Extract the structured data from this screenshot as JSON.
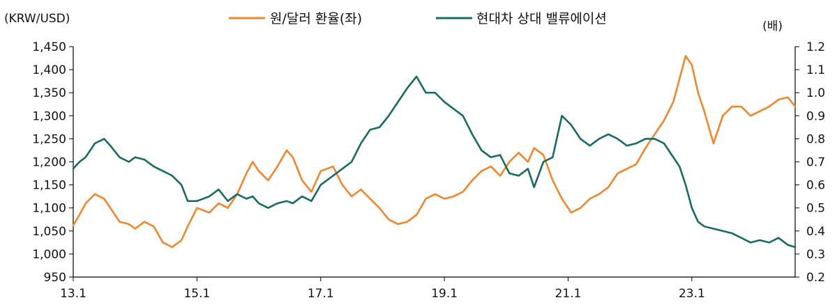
{
  "chart_data": {
    "type": "line",
    "left_axis_label": "(KRW/USD)",
    "right_axis_label": "(배)",
    "left_ylim": [
      950,
      1450
    ],
    "left_ticks": [
      "1,450",
      "1,400",
      "1,350",
      "1,300",
      "1,250",
      "1,200",
      "1,150",
      "1,100",
      "1,050",
      "1,000",
      "950"
    ],
    "left_tick_values": [
      1450,
      1400,
      1350,
      1300,
      1250,
      1200,
      1150,
      1100,
      1050,
      1000,
      950
    ],
    "right_ylim": [
      0.2,
      1.2
    ],
    "right_ticks": [
      "1.2",
      "1.1",
      "1.0",
      "0.9",
      "0.8",
      "0.7",
      "0.6",
      "0.5",
      "0.4",
      "0.3",
      "0.2"
    ],
    "right_tick_values": [
      1.2,
      1.1,
      1.0,
      0.9,
      0.8,
      0.7,
      0.6,
      0.5,
      0.4,
      0.3,
      0.2
    ],
    "x_range": [
      2013.0,
      2024.67
    ],
    "x_ticks": [
      "13.1",
      "15.1",
      "17.1",
      "19.1",
      "21.1",
      "23.1"
    ],
    "x_tick_values": [
      2013.0,
      2015.0,
      2017.0,
      2019.0,
      2021.0,
      2023.0
    ],
    "grid": false,
    "legend_position": "top-center",
    "series": [
      {
        "name": "원/달러 환율(좌)",
        "axis": "left",
        "color": "#F4862A",
        "x": [
          2013.0,
          2013.1,
          2013.2,
          2013.35,
          2013.5,
          2013.6,
          2013.75,
          2013.9,
          2014.0,
          2014.15,
          2014.3,
          2014.45,
          2014.6,
          2014.75,
          2014.85,
          2015.0,
          2015.2,
          2015.35,
          2015.5,
          2015.65,
          2015.8,
          2015.9,
          2016.0,
          2016.15,
          2016.3,
          2016.45,
          2016.55,
          2016.7,
          2016.85,
          2017.0,
          2017.2,
          2017.35,
          2017.5,
          2017.65,
          2017.8,
          2017.95,
          2018.1,
          2018.25,
          2018.4,
          2018.55,
          2018.7,
          2018.85,
          2019.0,
          2019.15,
          2019.3,
          2019.45,
          2019.6,
          2019.75,
          2019.9,
          2020.05,
          2020.2,
          2020.35,
          2020.45,
          2020.6,
          2020.75,
          2020.9,
          2021.05,
          2021.2,
          2021.35,
          2021.5,
          2021.65,
          2021.8,
          2021.95,
          2022.1,
          2022.25,
          2022.4,
          2022.55,
          2022.7,
          2022.8,
          2022.9,
          2023.0,
          2023.1,
          2023.2,
          2023.35,
          2023.5,
          2023.65,
          2023.8,
          2023.95,
          2024.1,
          2024.25,
          2024.4,
          2024.55,
          2024.67
        ],
        "values": [
          1062,
          1085,
          1110,
          1130,
          1120,
          1100,
          1070,
          1065,
          1055,
          1070,
          1060,
          1025,
          1015,
          1030,
          1060,
          1100,
          1090,
          1110,
          1100,
          1130,
          1175,
          1200,
          1180,
          1160,
          1190,
          1225,
          1210,
          1160,
          1135,
          1180,
          1190,
          1150,
          1125,
          1140,
          1120,
          1100,
          1075,
          1065,
          1070,
          1085,
          1120,
          1130,
          1120,
          1125,
          1135,
          1160,
          1180,
          1190,
          1170,
          1200,
          1220,
          1200,
          1230,
          1215,
          1160,
          1120,
          1090,
          1100,
          1120,
          1130,
          1145,
          1175,
          1185,
          1195,
          1230,
          1260,
          1290,
          1330,
          1380,
          1430,
          1410,
          1350,
          1310,
          1240,
          1300,
          1320,
          1320,
          1300,
          1310,
          1320,
          1335,
          1340,
          1320
        ]
      },
      {
        "name": "현대차 상대 밸류에이션",
        "axis": "right",
        "color": "#176B63",
        "x": [
          2013.0,
          2013.1,
          2013.2,
          2013.35,
          2013.5,
          2013.6,
          2013.75,
          2013.9,
          2014.0,
          2014.15,
          2014.3,
          2014.45,
          2014.6,
          2014.75,
          2014.85,
          2015.0,
          2015.2,
          2015.35,
          2015.5,
          2015.65,
          2015.8,
          2015.9,
          2016.0,
          2016.15,
          2016.3,
          2016.45,
          2016.55,
          2016.7,
          2016.85,
          2017.0,
          2017.2,
          2017.35,
          2017.5,
          2017.65,
          2017.8,
          2017.95,
          2018.1,
          2018.25,
          2018.4,
          2018.55,
          2018.7,
          2018.85,
          2019.0,
          2019.15,
          2019.3,
          2019.45,
          2019.6,
          2019.75,
          2019.9,
          2020.05,
          2020.2,
          2020.35,
          2020.45,
          2020.6,
          2020.75,
          2020.9,
          2021.05,
          2021.2,
          2021.35,
          2021.5,
          2021.65,
          2021.8,
          2021.95,
          2022.1,
          2022.25,
          2022.4,
          2022.55,
          2022.7,
          2022.8,
          2022.9,
          2023.0,
          2023.1,
          2023.2,
          2023.35,
          2023.5,
          2023.65,
          2023.8,
          2023.95,
          2024.1,
          2024.25,
          2024.4,
          2024.55,
          2024.67
        ],
        "values": [
          0.67,
          0.7,
          0.72,
          0.78,
          0.8,
          0.77,
          0.72,
          0.7,
          0.72,
          0.71,
          0.68,
          0.66,
          0.64,
          0.6,
          0.53,
          0.53,
          0.55,
          0.58,
          0.53,
          0.56,
          0.54,
          0.55,
          0.52,
          0.5,
          0.52,
          0.53,
          0.52,
          0.55,
          0.53,
          0.6,
          0.64,
          0.67,
          0.7,
          0.78,
          0.84,
          0.85,
          0.9,
          0.96,
          1.02,
          1.07,
          1.0,
          1.0,
          0.96,
          0.93,
          0.9,
          0.82,
          0.75,
          0.72,
          0.73,
          0.65,
          0.64,
          0.67,
          0.59,
          0.7,
          0.72,
          0.9,
          0.86,
          0.8,
          0.77,
          0.8,
          0.82,
          0.8,
          0.77,
          0.78,
          0.8,
          0.8,
          0.78,
          0.72,
          0.68,
          0.6,
          0.5,
          0.44,
          0.42,
          0.41,
          0.4,
          0.39,
          0.37,
          0.35,
          0.36,
          0.35,
          0.37,
          0.34,
          0.33
        ]
      }
    ]
  }
}
